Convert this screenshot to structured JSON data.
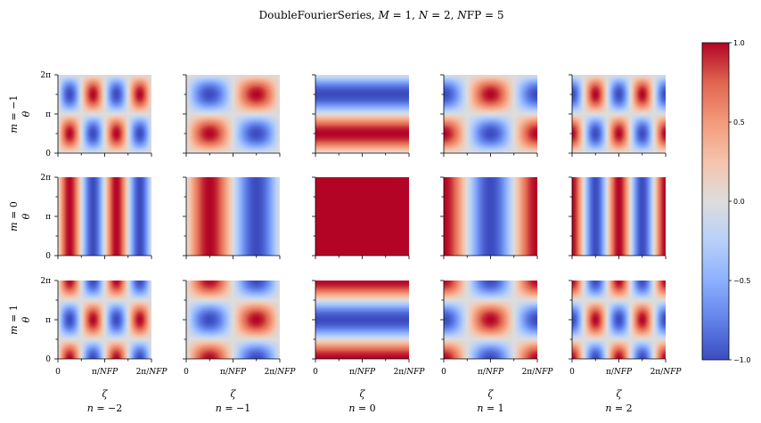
{
  "chart_data": {
    "type": "heatmap",
    "title": "DoubleFourierSeries, M = 1, N = 2, NFP = 5",
    "colormap": "coolwarm",
    "colors": {
      "low": "#3b4cc0",
      "mid": "#dddddd",
      "high": "#b40426"
    },
    "rows": [
      {
        "m": -1,
        "label": "m = −1"
      },
      {
        "m": 0,
        "label": "m = 0"
      },
      {
        "m": 1,
        "label": "m = 1"
      }
    ],
    "columns": [
      {
        "n": -2,
        "label": "n = −2"
      },
      {
        "n": -1,
        "label": "n = −1"
      },
      {
        "n": 0,
        "label": "n = 0"
      },
      {
        "n": 1,
        "label": "n = 1"
      },
      {
        "n": 2,
        "label": "n = 2"
      }
    ],
    "xlabel": "ζ",
    "ylabel": "θ",
    "x_ticks": [
      "0",
      "π/NFP",
      "2π/NFP"
    ],
    "y_ticks": [
      "0",
      "π",
      "2π"
    ],
    "ylim": [
      0,
      6.2832
    ],
    "xlim": [
      0,
      1.2566
    ],
    "colorbar": {
      "ticks": [
        "−1.0",
        "−0.5",
        "0.0",
        "0.5",
        "1.0"
      ],
      "range": [
        -1,
        1
      ]
    }
  }
}
